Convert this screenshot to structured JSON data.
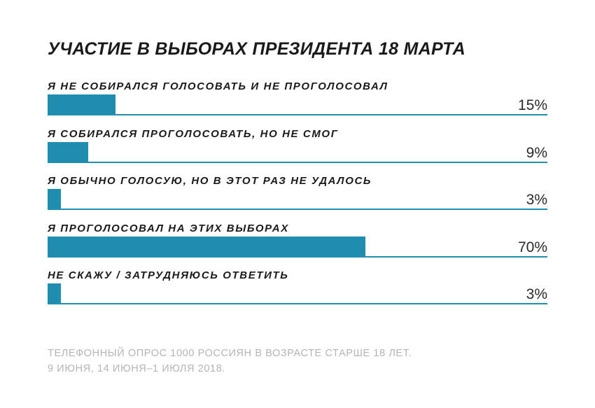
{
  "chart_data": {
    "type": "bar",
    "orientation": "horizontal",
    "title": "УЧАСТИЕ В ВЫБОРАХ ПРЕЗИДЕНТА 18 МАРТА",
    "categories": [
      "Я НЕ СОБИРАЛСЯ ГОЛОСОВАТЬ И НЕ ПРОГОЛОСОВАЛ",
      "Я СОБИРАЛСЯ ПРОГОЛОСОВАТЬ, НО НЕ СМОГ",
      "Я ОБЫЧНО ГОЛОСУЮ, НО В ЭТОТ РАЗ НЕ УДАЛОСЬ",
      "Я ПРОГОЛОСОВАЛ НА ЭТИХ ВЫБОРАХ",
      "НЕ СКАЖУ / ЗАТРУДНЯЮСЬ ОТВЕТИТЬ"
    ],
    "values": [
      15,
      9,
      3,
      70,
      3
    ],
    "value_labels": [
      "15%",
      "9%",
      "3%",
      "70%",
      "3%"
    ],
    "xlim": [
      0,
      110
    ],
    "grid": false,
    "bar_color": "#1f8db0"
  },
  "notes": [
    "ТЕЛЕФОННЫЙ ОПРОС 1000 РОССИЯН В ВОЗРАСТЕ СТАРШЕ 18 ЛЕТ.",
    "9 ИЮНЯ, 14 ИЮНЯ–1 ИЮЛЯ 2018."
  ]
}
